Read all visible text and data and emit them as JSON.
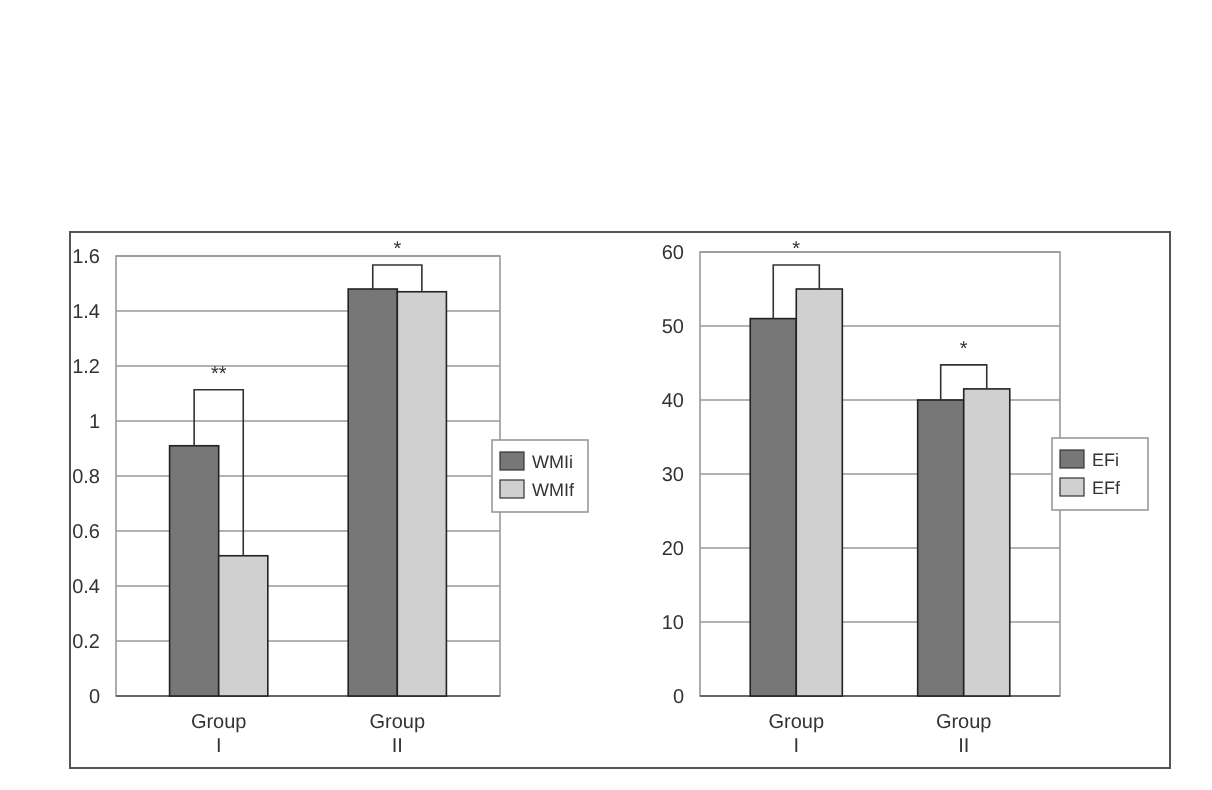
{
  "chart_data": [
    {
      "type": "bar",
      "categories": [
        "Group I",
        "Group II"
      ],
      "series": [
        {
          "name": "WMIi",
          "color": "#777777",
          "values": [
            0.91,
            1.48
          ]
        },
        {
          "name": "WMIf",
          "color": "#d0d0d0",
          "values": [
            0.51,
            1.47
          ]
        }
      ],
      "ylim": [
        0,
        1.6
      ],
      "yticks": [
        0,
        0.2,
        0.4,
        0.6,
        0.8,
        1,
        1.2,
        1.4,
        1.6
      ],
      "grid": "y",
      "legend": "right",
      "annotations": [
        "**",
        "*"
      ]
    },
    {
      "type": "bar",
      "categories": [
        "Group I",
        "Group II"
      ],
      "series": [
        {
          "name": "EFi",
          "color": "#777777",
          "values": [
            51,
            40
          ]
        },
        {
          "name": "EFf",
          "color": "#d0d0d0",
          "values": [
            55,
            41.5
          ]
        }
      ],
      "ylim": [
        0,
        60
      ],
      "yticks": [
        0,
        10,
        20,
        30,
        40,
        50,
        60
      ],
      "grid": "y",
      "legend": "right",
      "annotations": [
        "*",
        "*"
      ]
    }
  ]
}
